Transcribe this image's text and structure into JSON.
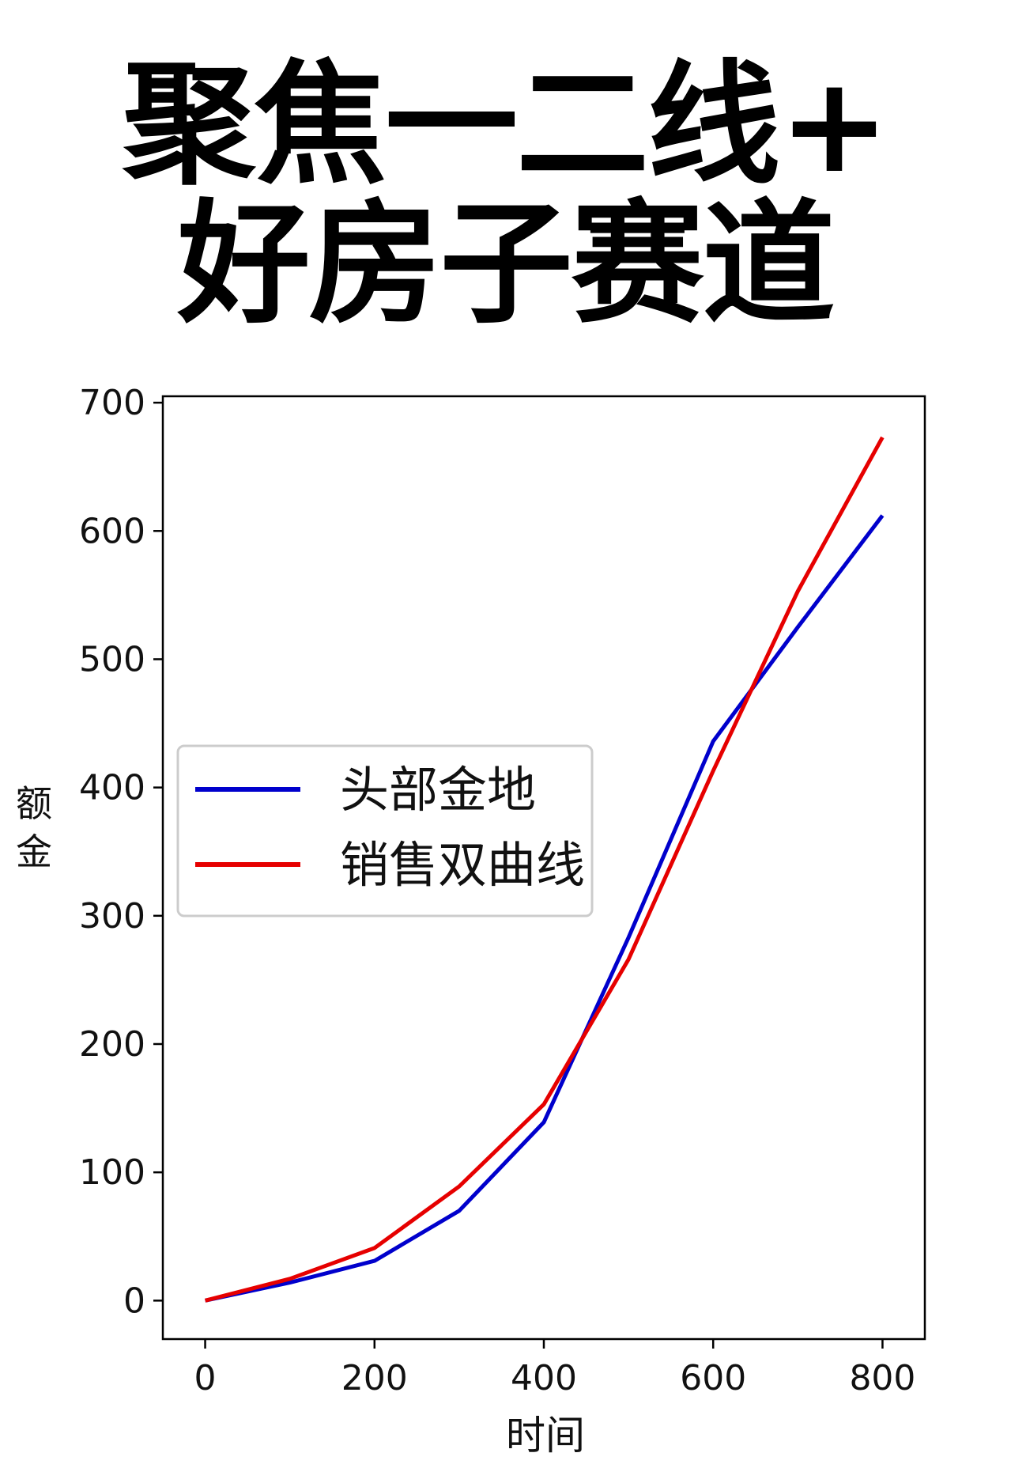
{
  "header": {
    "title_line1": "聚焦一二线+",
    "title_line2": "好房子赛道"
  },
  "chart_data": {
    "type": "line",
    "xlabel": "时间",
    "ylabel": "额 金",
    "xlim": [
      -50,
      850
    ],
    "ylim": [
      -30,
      705
    ],
    "xticks": [
      0,
      200,
      400,
      600,
      800
    ],
    "yticks": [
      0,
      100,
      200,
      300,
      400,
      500,
      600,
      700
    ],
    "grid": false,
    "legend_position": "center-left",
    "series": [
      {
        "name": "头部金地",
        "color": "#0000cc",
        "x": [
          0,
          100,
          200,
          300,
          400,
          500,
          600,
          700,
          800
        ],
        "y": [
          0,
          14,
          31,
          70,
          139,
          283,
          436,
          525,
          612
        ]
      },
      {
        "name": "销售双曲线",
        "color": "#e60000",
        "x": [
          0,
          100,
          200,
          300,
          400,
          500,
          600,
          700,
          800
        ],
        "y": [
          0,
          17,
          41,
          89,
          153,
          266,
          413,
          553,
          673
        ]
      }
    ]
  }
}
